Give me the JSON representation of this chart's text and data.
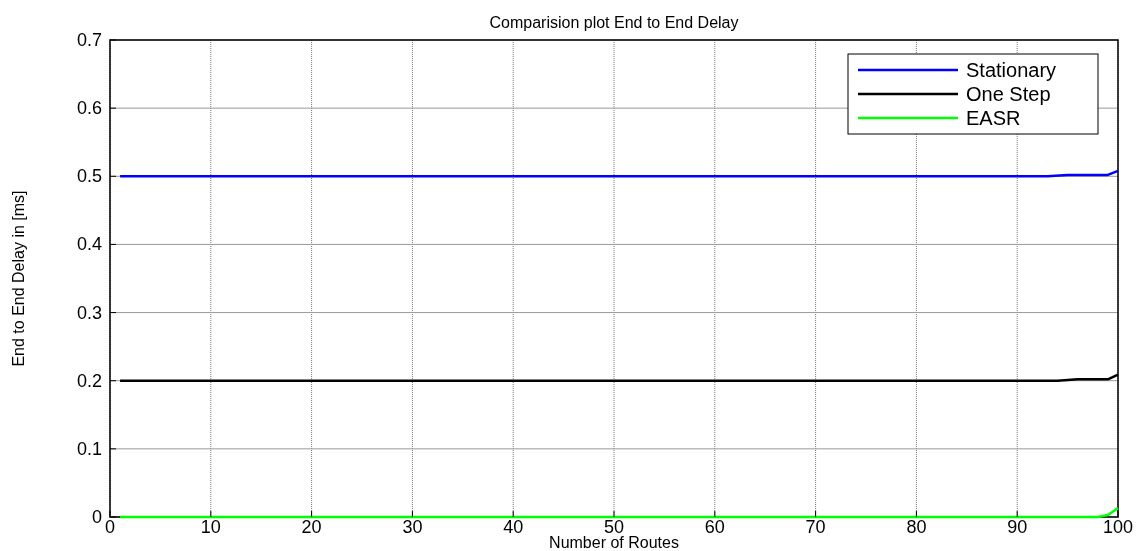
{
  "chart_data": {
    "type": "line",
    "title": "Comparision plot End to End Delay",
    "xlabel": "Number of Routes",
    "ylabel": "End to End Delay in [ms]",
    "series": [
      {
        "name": "Stationary",
        "color": "#0000ff",
        "x": [
          1,
          93,
          95,
          99,
          100
        ],
        "values": [
          0.5,
          0.5,
          0.502,
          0.502,
          0.508
        ]
      },
      {
        "name": "One Step",
        "color": "#000000",
        "x": [
          1,
          94,
          96,
          99,
          100
        ],
        "values": [
          0.2,
          0.2,
          0.202,
          0.202,
          0.209
        ]
      },
      {
        "name": "EASR",
        "color": "#00ff00",
        "x": [
          1,
          98,
          99,
          100
        ],
        "values": [
          0,
          0,
          0.003,
          0.013
        ]
      }
    ],
    "xlim": [
      0,
      100
    ],
    "xticks": [
      0,
      10,
      20,
      30,
      40,
      50,
      60,
      70,
      80,
      90,
      100
    ],
    "ylim": [
      0,
      0.7
    ],
    "yticks": [
      0,
      0.1,
      0.2,
      0.3,
      0.4,
      0.5,
      0.6,
      0.7
    ],
    "grid": true,
    "legend": "top right",
    "line_style": "solid"
  }
}
